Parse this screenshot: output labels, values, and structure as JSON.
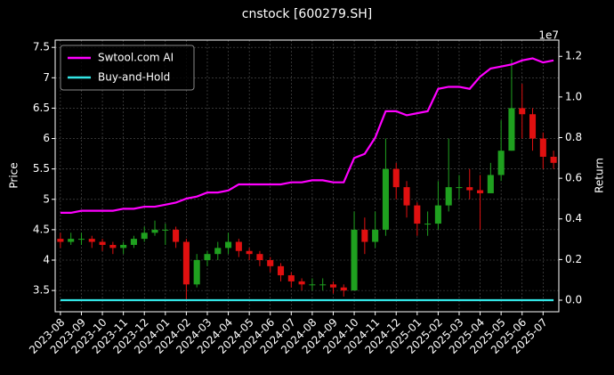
{
  "chart_data": {
    "type": "candlestick",
    "title": "cnstock [600279.SH]",
    "ylabel": "Price",
    "y2label": "Return",
    "y2_offset_label": "1e7",
    "categories": [
      "2023-08",
      null,
      "2023-09",
      null,
      "2023-10",
      null,
      "2023-11",
      null,
      "2023-12",
      null,
      "2024-01",
      null,
      "2024-02",
      null,
      "2024-03",
      null,
      "2024-04",
      null,
      "2024-05",
      null,
      "2024-06",
      null,
      "2024-07",
      null,
      "2024-08",
      null,
      "2024-09",
      null,
      "2024-10",
      null,
      "2024-11",
      null,
      "2024-12",
      null,
      "2025-01",
      null,
      "2025-02",
      null,
      "2025-03",
      null,
      "2025-04",
      null,
      "2025-05",
      null,
      "2025-06",
      null,
      "2025-07",
      null
    ],
    "open": [
      4.35,
      4.3,
      4.35,
      4.35,
      4.3,
      4.25,
      4.2,
      4.25,
      4.35,
      4.45,
      4.5,
      4.5,
      4.3,
      3.6,
      4.0,
      4.1,
      4.2,
      4.3,
      4.15,
      4.1,
      4.0,
      3.9,
      3.75,
      3.65,
      3.6,
      3.6,
      3.6,
      3.55,
      3.5,
      4.5,
      4.3,
      4.5,
      5.5,
      5.2,
      4.9,
      4.6,
      4.6,
      4.9,
      5.2,
      5.2,
      5.15,
      5.1,
      5.4,
      5.8,
      6.5,
      6.4,
      6.0,
      5.7
    ],
    "high": [
      4.45,
      4.45,
      4.45,
      4.4,
      4.35,
      4.3,
      4.3,
      4.4,
      4.55,
      4.65,
      4.6,
      4.55,
      4.35,
      4.1,
      4.15,
      4.3,
      4.45,
      4.35,
      4.2,
      4.15,
      4.05,
      3.95,
      3.8,
      3.7,
      3.7,
      3.7,
      3.65,
      3.6,
      4.8,
      4.7,
      4.8,
      6.0,
      5.6,
      5.3,
      4.95,
      4.8,
      5.3,
      6.0,
      5.4,
      5.5,
      5.4,
      5.6,
      6.3,
      7.3,
      6.9,
      6.5,
      6.1,
      5.8
    ],
    "low": [
      4.2,
      4.25,
      4.25,
      4.2,
      4.15,
      4.1,
      4.1,
      4.2,
      4.3,
      4.4,
      4.25,
      4.2,
      3.35,
      3.55,
      3.9,
      4.0,
      4.1,
      4.05,
      4.0,
      3.9,
      3.8,
      3.65,
      3.55,
      3.5,
      3.5,
      3.5,
      3.45,
      3.4,
      3.5,
      4.1,
      4.2,
      4.4,
      5.0,
      4.7,
      4.4,
      4.4,
      4.5,
      4.8,
      5.0,
      5.0,
      4.5,
      5.1,
      5.3,
      5.8,
      6.0,
      5.8,
      5.5,
      5.5
    ],
    "close": [
      4.3,
      4.35,
      4.35,
      4.3,
      4.25,
      4.2,
      4.25,
      4.35,
      4.45,
      4.5,
      4.5,
      4.3,
      3.6,
      4.0,
      4.1,
      4.2,
      4.3,
      4.15,
      4.1,
      4.0,
      3.9,
      3.75,
      3.65,
      3.6,
      3.6,
      3.6,
      3.55,
      3.5,
      4.5,
      4.3,
      4.5,
      5.5,
      5.2,
      4.9,
      4.6,
      4.6,
      4.9,
      5.2,
      5.2,
      5.15,
      5.1,
      5.4,
      5.8,
      6.5,
      6.4,
      6.0,
      5.7,
      5.6
    ],
    "up_color": "#1fa01f",
    "down_color": "#e01010",
    "series": [
      {
        "name": "Swtool.com AI",
        "color": "#ff00ff",
        "axis": "y2",
        "values": [
          0.43,
          0.43,
          0.44,
          0.44,
          0.44,
          0.44,
          0.45,
          0.45,
          0.46,
          0.46,
          0.47,
          0.48,
          0.5,
          0.51,
          0.53,
          0.53,
          0.54,
          0.57,
          0.57,
          0.57,
          0.57,
          0.57,
          0.58,
          0.58,
          0.59,
          0.59,
          0.58,
          0.58,
          0.7,
          0.72,
          0.8,
          0.93,
          0.93,
          0.91,
          0.92,
          0.93,
          1.04,
          1.05,
          1.05,
          1.04,
          1.1,
          1.14,
          1.15,
          1.16,
          1.18,
          1.19,
          1.17,
          1.18
        ]
      },
      {
        "name": "Buy-and-Hold",
        "color": "#33e6e6",
        "axis": "y2",
        "values": [
          0,
          0,
          0,
          0,
          0,
          0,
          0,
          0,
          0,
          0,
          0,
          0,
          0,
          0,
          0,
          0,
          0,
          0,
          0,
          0,
          0,
          0,
          0,
          0,
          0,
          0,
          0,
          0,
          0,
          0,
          0,
          0,
          0,
          0,
          0,
          0,
          0,
          0,
          0,
          0,
          0,
          0,
          0,
          0,
          0,
          0,
          0,
          0
        ]
      }
    ],
    "ylim": [
      3.15,
      7.62
    ],
    "yticks": [
      3.5,
      4.0,
      4.5,
      5.0,
      5.5,
      6.0,
      6.5,
      7.0,
      7.5
    ],
    "y2lim": [
      -0.057,
      1.28
    ],
    "y2ticks": [
      {
        "value": 0,
        "label": "0.0"
      },
      0.2,
      0.4,
      0.6,
      0.8,
      {
        "value": 1,
        "label": "1.0"
      },
      1.2
    ],
    "grid": true,
    "legend": "upper left"
  }
}
